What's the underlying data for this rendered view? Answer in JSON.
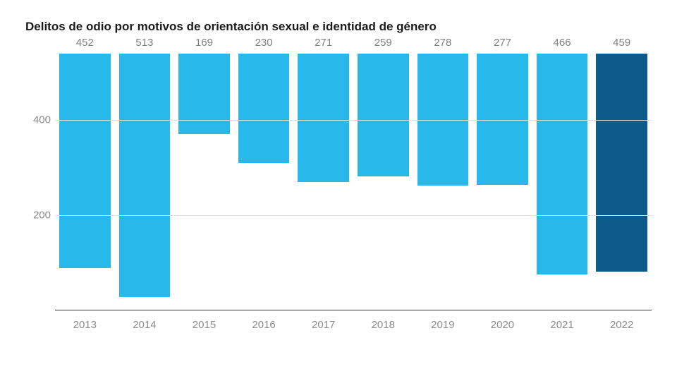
{
  "chart": {
    "type": "bar",
    "title": "Delitos de odio por motivos de orientación sexual e identidad de género",
    "title_fontsize": 17,
    "title_color": "#1a1a1a",
    "background_color": "#ffffff",
    "grid_color": "#e0e0e0",
    "axis_color": "#333333",
    "tick_color": "#8c8c8c",
    "value_label_color": "#808080",
    "tick_fontsize": 15,
    "value_label_fontsize": 15,
    "ylim": [
      0,
      540
    ],
    "yticks": [
      200,
      400
    ],
    "bar_width": 1.0,
    "categories": [
      "2013",
      "2014",
      "2015",
      "2016",
      "2017",
      "2018",
      "2019",
      "2020",
      "2021",
      "2022"
    ],
    "values": [
      452,
      513,
      169,
      230,
      271,
      259,
      278,
      277,
      466,
      459
    ],
    "bar_colors": [
      "#29b8ea",
      "#29b8ea",
      "#29b8ea",
      "#29b8ea",
      "#29b8ea",
      "#29b8ea",
      "#29b8ea",
      "#29b8ea",
      "#29b8ea",
      "#0e5a8a"
    ]
  }
}
